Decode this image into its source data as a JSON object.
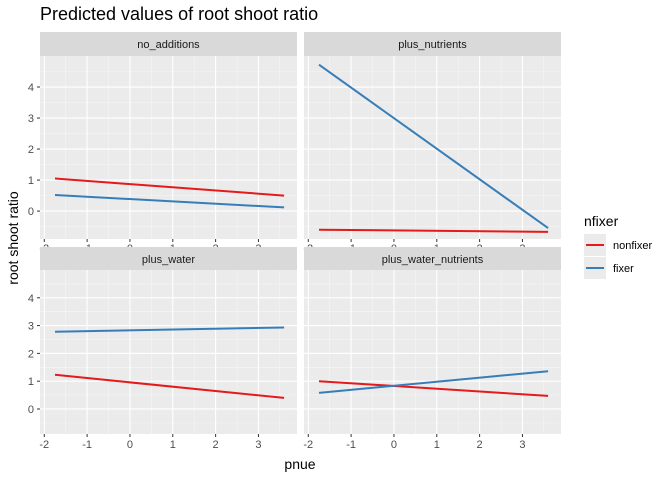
{
  "chart_data": {
    "type": "line",
    "title": "Predicted values of root shoot ratio",
    "xlabel": "pnue",
    "ylabel": "root shoot ratio",
    "xlim": [
      -2.1,
      3.9
    ],
    "ylim": [
      -0.9,
      5.0
    ],
    "x_ticks": [
      -2,
      -1,
      0,
      1,
      2,
      3
    ],
    "y_ticks": [
      0,
      1,
      2,
      3,
      4
    ],
    "grid": true,
    "legend": {
      "title": "nfixer",
      "position": "right",
      "entries": [
        {
          "name": "nonfixer",
          "color": "#e41a1c"
        },
        {
          "name": "fixer",
          "color": "#377eb8"
        }
      ]
    },
    "panels": [
      {
        "label": "no_additions",
        "series": [
          {
            "name": "nonfixer",
            "x": [
              -1.75,
              3.6
            ],
            "y": [
              1.05,
              0.5
            ]
          },
          {
            "name": "fixer",
            "x": [
              -1.75,
              3.6
            ],
            "y": [
              0.52,
              0.12
            ]
          }
        ]
      },
      {
        "label": "plus_nutrients",
        "series": [
          {
            "name": "nonfixer",
            "x": [
              -1.75,
              3.6
            ],
            "y": [
              -0.6,
              -0.67
            ]
          },
          {
            "name": "fixer",
            "x": [
              -1.75,
              3.6
            ],
            "y": [
              4.72,
              -0.55
            ]
          }
        ]
      },
      {
        "label": "plus_water",
        "series": [
          {
            "name": "nonfixer",
            "x": [
              -1.75,
              3.6
            ],
            "y": [
              1.23,
              0.4
            ]
          },
          {
            "name": "fixer",
            "x": [
              -1.75,
              3.6
            ],
            "y": [
              2.78,
              2.93
            ]
          }
        ]
      },
      {
        "label": "plus_water_nutrients",
        "series": [
          {
            "name": "nonfixer",
            "x": [
              -1.75,
              3.6
            ],
            "y": [
              1.0,
              0.47
            ]
          },
          {
            "name": "fixer",
            "x": [
              -1.75,
              3.6
            ],
            "y": [
              0.58,
              1.36
            ]
          }
        ]
      }
    ]
  }
}
